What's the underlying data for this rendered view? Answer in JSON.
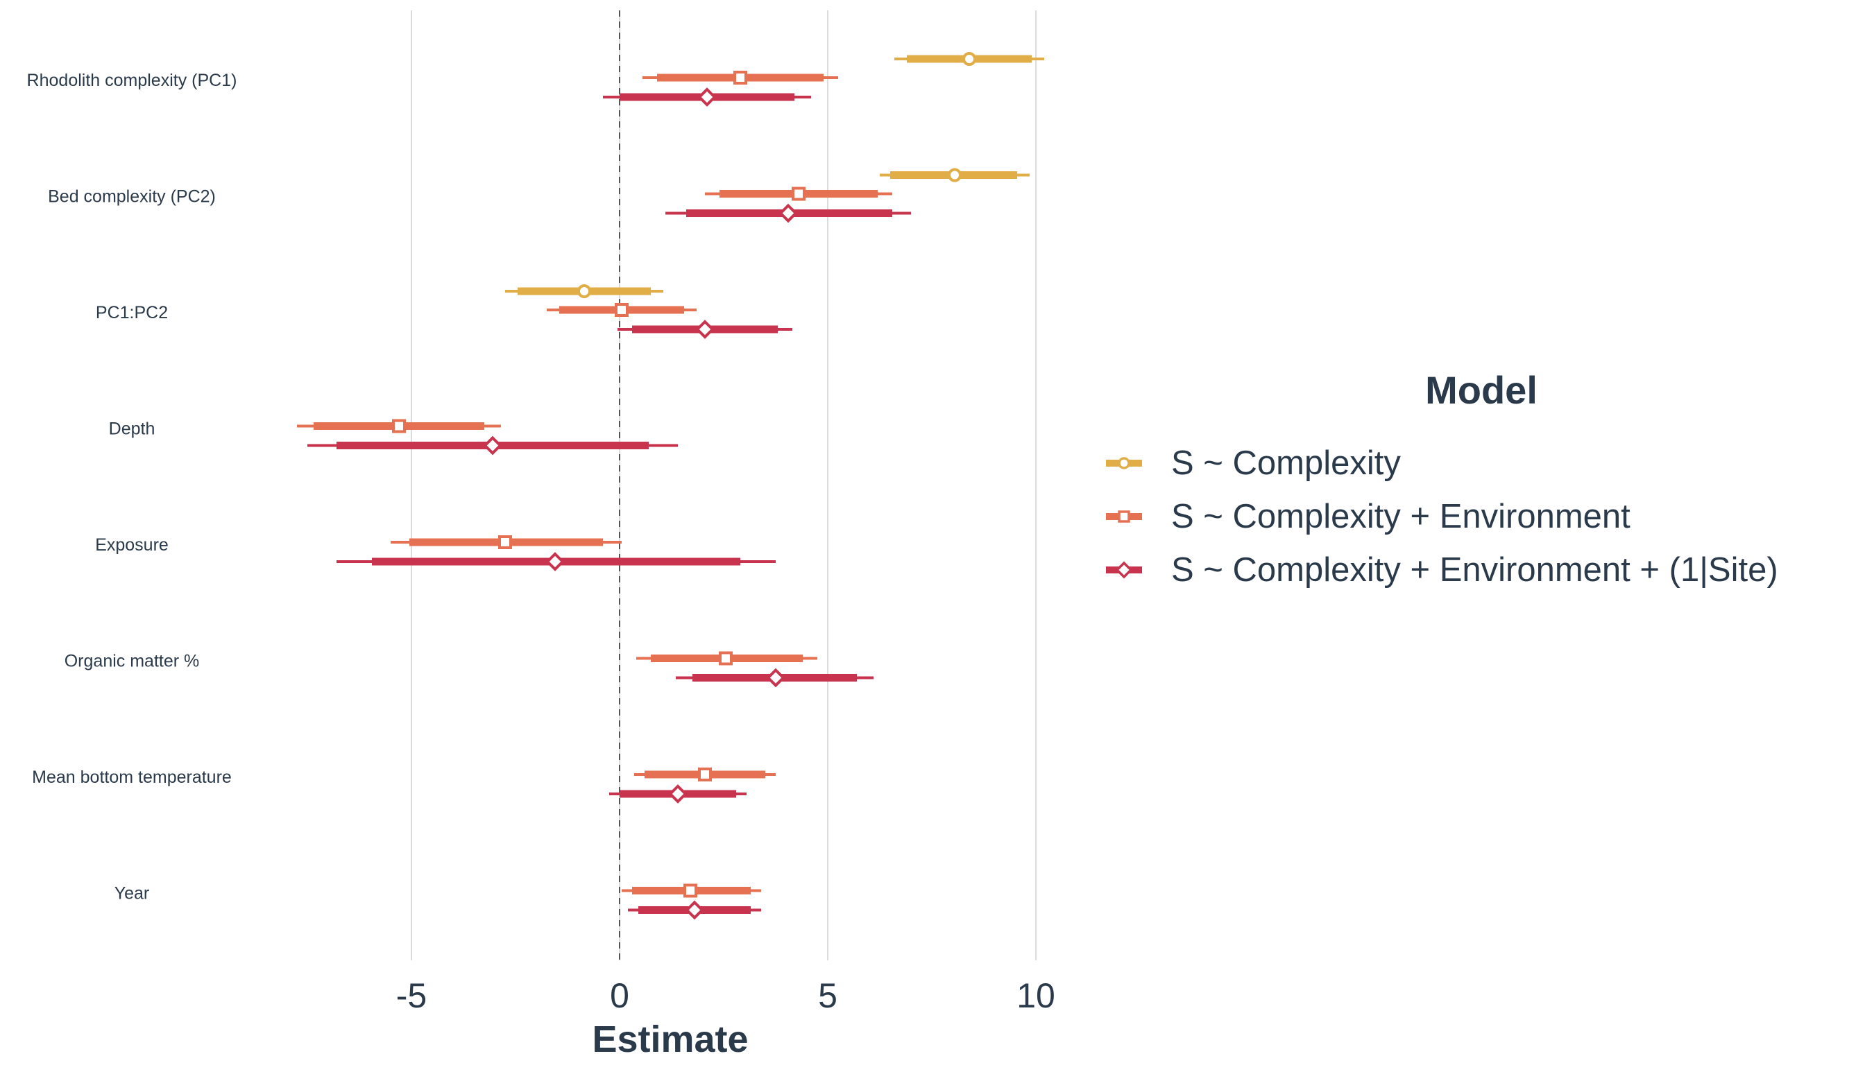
{
  "chart_data": {
    "type": "forest",
    "xlabel": "Estimate",
    "xticks": [
      -5,
      0,
      5,
      10
    ],
    "xlim": [
      -8.0,
      10.6
    ],
    "reference_line": 0,
    "grid": "vertical major lines",
    "legend": {
      "title": "Model",
      "placement": "right"
    },
    "categories": [
      "Rhodolith complexity (PC1)",
      "Bed complexity (PC2)",
      "PC1:PC2",
      "Depth",
      "Exposure",
      "Organic matter %",
      "Mean bottom temperature",
      "Year"
    ],
    "series": [
      {
        "name": "S ~ Complexity",
        "color": "#e0ad46",
        "marker": "circle",
        "points": [
          {
            "category": "Rhodolith complexity (PC1)",
            "estimate": 8.4,
            "ci_inner": [
              6.9,
              9.9
            ],
            "ci_outer": [
              6.6,
              10.2
            ]
          },
          {
            "category": "Bed complexity (PC2)",
            "estimate": 8.05,
            "ci_inner": [
              6.5,
              9.55
            ],
            "ci_outer": [
              6.25,
              9.85
            ]
          },
          {
            "category": "PC1:PC2",
            "estimate": -0.85,
            "ci_inner": [
              -2.45,
              0.75
            ],
            "ci_outer": [
              -2.75,
              1.05
            ]
          }
        ]
      },
      {
        "name": "S ~ Complexity + Environment",
        "color": "#e57052",
        "marker": "square",
        "points": [
          {
            "category": "Rhodolith complexity (PC1)",
            "estimate": 2.9,
            "ci_inner": [
              0.9,
              4.9
            ],
            "ci_outer": [
              0.55,
              5.25
            ]
          },
          {
            "category": "Bed complexity (PC2)",
            "estimate": 4.3,
            "ci_inner": [
              2.4,
              6.2
            ],
            "ci_outer": [
              2.05,
              6.55
            ]
          },
          {
            "category": "PC1:PC2",
            "estimate": 0.05,
            "ci_inner": [
              -1.45,
              1.55
            ],
            "ci_outer": [
              -1.75,
              1.85
            ]
          },
          {
            "category": "Depth",
            "estimate": -5.3,
            "ci_inner": [
              -7.35,
              -3.25
            ],
            "ci_outer": [
              -7.75,
              -2.85
            ]
          },
          {
            "category": "Exposure",
            "estimate": -2.75,
            "ci_inner": [
              -5.05,
              -0.4
            ],
            "ci_outer": [
              -5.5,
              0.05
            ]
          },
          {
            "category": "Organic matter %",
            "estimate": 2.55,
            "ci_inner": [
              0.75,
              4.4
            ],
            "ci_outer": [
              0.4,
              4.75
            ]
          },
          {
            "category": "Mean bottom temperature",
            "estimate": 2.05,
            "ci_inner": [
              0.6,
              3.5
            ],
            "ci_outer": [
              0.35,
              3.75
            ]
          },
          {
            "category": "Year",
            "estimate": 1.7,
            "ci_inner": [
              0.3,
              3.15
            ],
            "ci_outer": [
              0.05,
              3.4
            ]
          }
        ]
      },
      {
        "name": "S ~ Complexity + Environment + (1|Site)",
        "color": "#c8344d",
        "marker": "diamond",
        "points": [
          {
            "category": "Rhodolith complexity (PC1)",
            "estimate": 2.1,
            "ci_inner": [
              0.0,
              4.2
            ],
            "ci_outer": [
              -0.4,
              4.6
            ]
          },
          {
            "category": "Bed complexity (PC2)",
            "estimate": 4.05,
            "ci_inner": [
              1.6,
              6.55
            ],
            "ci_outer": [
              1.1,
              7.0
            ]
          },
          {
            "category": "PC1:PC2",
            "estimate": 2.05,
            "ci_inner": [
              0.3,
              3.8
            ],
            "ci_outer": [
              -0.05,
              4.15
            ]
          },
          {
            "category": "Depth",
            "estimate": -3.05,
            "ci_inner": [
              -6.8,
              0.7
            ],
            "ci_outer": [
              -7.5,
              1.4
            ]
          },
          {
            "category": "Exposure",
            "estimate": -1.55,
            "ci_inner": [
              -5.95,
              2.9
            ],
            "ci_outer": [
              -6.8,
              3.75
            ]
          },
          {
            "category": "Organic matter %",
            "estimate": 3.75,
            "ci_inner": [
              1.75,
              5.7
            ],
            "ci_outer": [
              1.35,
              6.1
            ]
          },
          {
            "category": "Mean bottom temperature",
            "estimate": 1.4,
            "ci_inner": [
              0.0,
              2.8
            ],
            "ci_outer": [
              -0.25,
              3.05
            ]
          },
          {
            "category": "Year",
            "estimate": 1.8,
            "ci_inner": [
              0.45,
              3.15
            ],
            "ci_outer": [
              0.2,
              3.4
            ]
          }
        ]
      }
    ]
  }
}
